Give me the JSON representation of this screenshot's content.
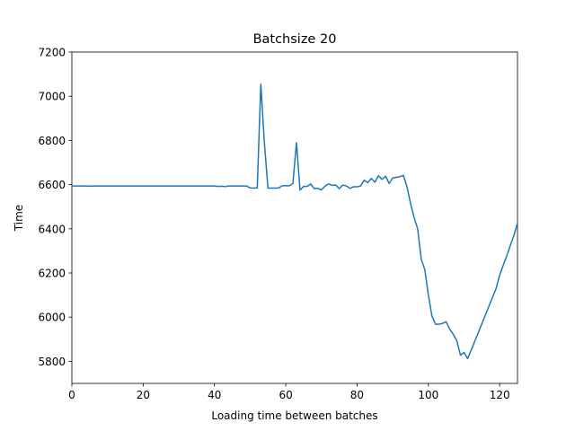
{
  "chart_data": {
    "type": "line",
    "title": "Batchsize 20",
    "xlabel": "Loading time between batches",
    "ylabel": "Time",
    "xlim": [
      0,
      125
    ],
    "ylim": [
      5700,
      7200
    ],
    "xticks": [
      0,
      20,
      40,
      60,
      80,
      100,
      120
    ],
    "yticks": [
      5800,
      6000,
      6200,
      6400,
      6600,
      6800,
      7000,
      7200
    ],
    "grid": false,
    "series": [
      {
        "color": "#1f77b4",
        "x": [
          0,
          1,
          2,
          3,
          4,
          5,
          6,
          7,
          8,
          9,
          10,
          11,
          12,
          13,
          14,
          15,
          16,
          17,
          18,
          19,
          20,
          21,
          22,
          23,
          24,
          25,
          26,
          27,
          28,
          29,
          30,
          31,
          32,
          33,
          34,
          35,
          36,
          37,
          38,
          39,
          40,
          41,
          42,
          43,
          44,
          45,
          46,
          47,
          48,
          49,
          50,
          51,
          52,
          53,
          54,
          55,
          56,
          57,
          58,
          59,
          60,
          61,
          62,
          63,
          64,
          65,
          66,
          67,
          68,
          69,
          70,
          71,
          72,
          73,
          74,
          75,
          76,
          77,
          78,
          79,
          80,
          81,
          82,
          83,
          84,
          85,
          86,
          87,
          88,
          89,
          90,
          91,
          92,
          93,
          94,
          95,
          96,
          97,
          98,
          99,
          100,
          101,
          102,
          103,
          104,
          105,
          106,
          107,
          108,
          109,
          110,
          111,
          112,
          113,
          114,
          115,
          116,
          117,
          118,
          119,
          120,
          121,
          122,
          123,
          124,
          125
        ],
        "y": [
          6594,
          6594,
          6594,
          6594,
          6594,
          6593,
          6594,
          6594,
          6594,
          6594,
          6594,
          6594,
          6594,
          6594,
          6594,
          6594,
          6594,
          6594,
          6594,
          6594,
          6594,
          6594,
          6594,
          6594,
          6594,
          6594,
          6594,
          6594,
          6594,
          6594,
          6594,
          6594,
          6594,
          6594,
          6594,
          6594,
          6594,
          6594,
          6594,
          6594,
          6594,
          6592,
          6593,
          6591,
          6594,
          6594,
          6594,
          6594,
          6594,
          6594,
          6585,
          6584,
          6585,
          7055,
          6790,
          6584,
          6584,
          6584,
          6585,
          6595,
          6595,
          6595,
          6605,
          6790,
          6575,
          6592,
          6592,
          6603,
          6582,
          6583,
          6576,
          6593,
          6603,
          6597,
          6598,
          6582,
          6598,
          6594,
          6583,
          6590,
          6590,
          6594,
          6620,
          6609,
          6628,
          6611,
          6640,
          6624,
          6638,
          6605,
          6630,
          6633,
          6636,
          6642,
          6590,
          6515,
          6450,
          6400,
          6262,
          6215,
          6100,
          6005,
          5968,
          5968,
          5972,
          5979,
          5945,
          5922,
          5892,
          5828,
          5840,
          5812,
          5850,
          5890,
          5930,
          5970,
          6010,
          6050,
          6090,
          6130,
          6190,
          6235,
          6278,
          6325,
          6370,
          6425
        ]
      }
    ]
  }
}
